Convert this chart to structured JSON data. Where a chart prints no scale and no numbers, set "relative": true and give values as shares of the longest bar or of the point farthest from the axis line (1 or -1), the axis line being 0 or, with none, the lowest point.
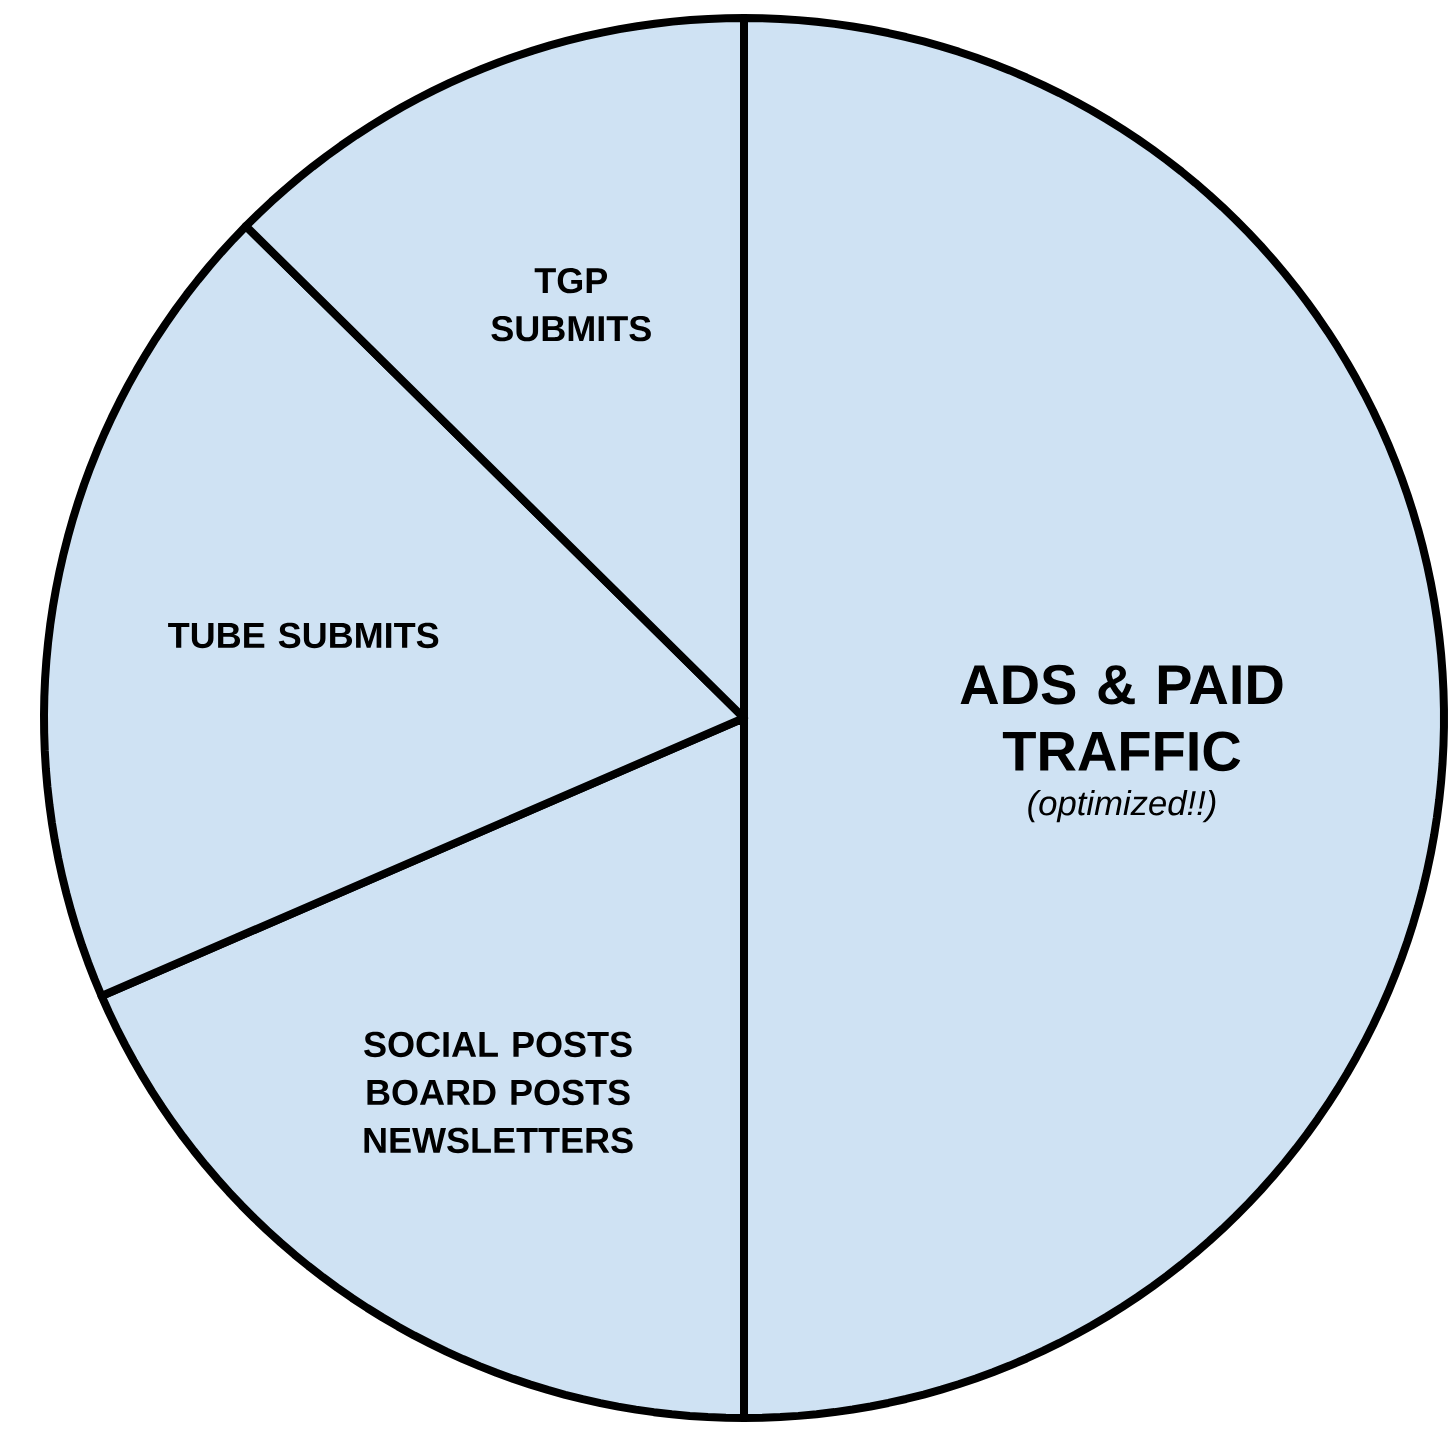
{
  "chart_data": {
    "type": "pie",
    "relative": true,
    "categories": [
      "ADS & PAID TRAFFIC",
      "SOCIAL POSTS BOARD POSTS NEWSLETTERS",
      "TUBE SUBMITS",
      "TGP SUBMITS"
    ],
    "values": [
      50,
      18.5,
      18.9,
      12.6
    ],
    "colors": [
      "#cfe2f3",
      "#cfe2f3",
      "#cfe2f3",
      "#cfe2f3"
    ],
    "annotations": [
      "(optimized!!)"
    ]
  }
}
